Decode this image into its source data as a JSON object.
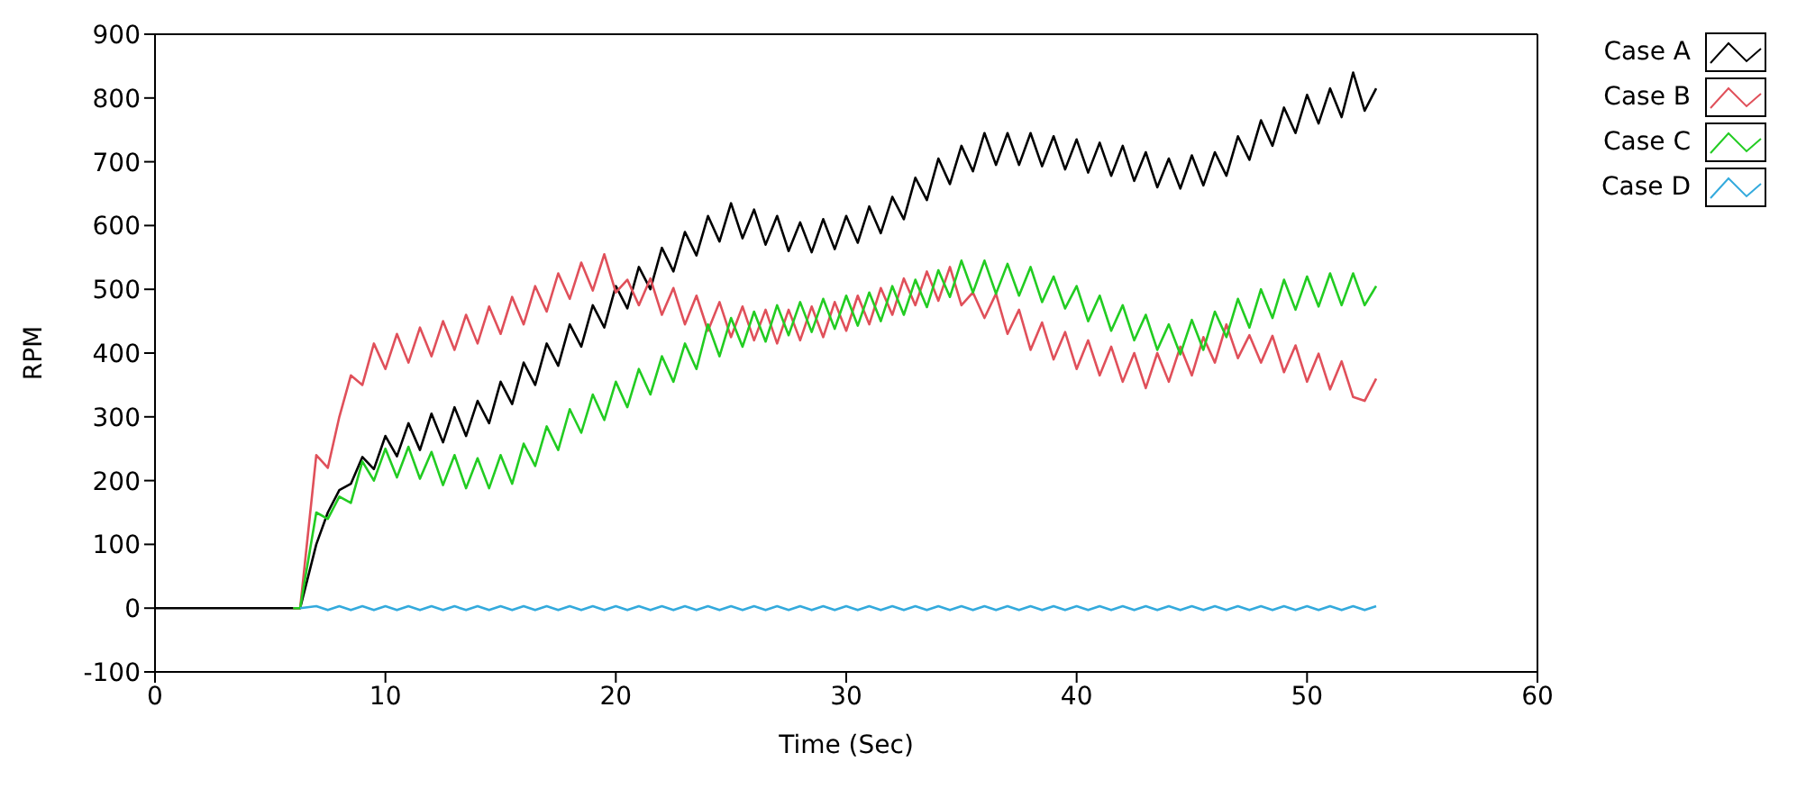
{
  "chart_data": {
    "type": "line",
    "xlabel": "Time (Sec)",
    "ylabel": "RPM",
    "xlim": [
      0,
      60
    ],
    "xticks": [
      0,
      10,
      20,
      30,
      40,
      50,
      60
    ],
    "ylim": [
      -100,
      900
    ],
    "yticks": [
      -100,
      0,
      100,
      200,
      300,
      400,
      500,
      600,
      700,
      800,
      900
    ],
    "grid": false,
    "legend": "top right",
    "marker": "none",
    "x": [
      0,
      2,
      4,
      6,
      6.3,
      7,
      7.5,
      8,
      8.5,
      9,
      9.5,
      10,
      10.5,
      11,
      11.5,
      12,
      12.5,
      13,
      13.5,
      14,
      14.5,
      15,
      15.5,
      16,
      16.5,
      17,
      17.5,
      18,
      18.5,
      19,
      19.5,
      20,
      20.5,
      21,
      21.5,
      22,
      22.5,
      23,
      23.5,
      24,
      24.5,
      25,
      25.5,
      26,
      26.5,
      27,
      27.5,
      28,
      28.5,
      29,
      29.5,
      30,
      30.5,
      31,
      31.5,
      32,
      32.5,
      33,
      33.5,
      34,
      34.5,
      35,
      35.5,
      36,
      36.5,
      37,
      37.5,
      38,
      38.5,
      39,
      39.5,
      40,
      40.5,
      41,
      41.5,
      42,
      42.5,
      43,
      43.5,
      44,
      44.5,
      45,
      45.5,
      46,
      46.5,
      47,
      47.5,
      48,
      48.5,
      49,
      49.5,
      50,
      50.5,
      51,
      51.5,
      52,
      52.5,
      53
    ],
    "series": [
      {
        "name": "Case A",
        "color": "#000000",
        "values": [
          0,
          0,
          0,
          0,
          0,
          100,
          150,
          185,
          195,
          237,
          218,
          270,
          238,
          290,
          248,
          305,
          260,
          315,
          270,
          325,
          290,
          355,
          320,
          385,
          350,
          415,
          380,
          445,
          410,
          475,
          440,
          505,
          470,
          535,
          500,
          565,
          528,
          590,
          553,
          615,
          575,
          635,
          580,
          625,
          570,
          615,
          560,
          605,
          558,
          610,
          563,
          615,
          573,
          630,
          588,
          645,
          610,
          675,
          640,
          705,
          665,
          725,
          685,
          745,
          695,
          745,
          695,
          745,
          693,
          740,
          688,
          735,
          683,
          730,
          678,
          725,
          670,
          715,
          660,
          705,
          658,
          710,
          663,
          715,
          678,
          740,
          703,
          765,
          725,
          785,
          745,
          805,
          760,
          815,
          770,
          840,
          780,
          815
        ]
      },
      {
        "name": "Case B",
        "color": "#e0505a",
        "values": [
          null,
          null,
          null,
          0,
          0,
          240,
          220,
          300,
          365,
          350,
          415,
          375,
          430,
          385,
          440,
          395,
          450,
          405,
          460,
          415,
          473,
          430,
          488,
          445,
          505,
          465,
          525,
          485,
          542,
          498,
          555,
          495,
          515,
          475,
          517,
          460,
          502,
          445,
          490,
          435,
          480,
          425,
          473,
          420,
          468,
          415,
          468,
          420,
          473,
          425,
          480,
          435,
          490,
          445,
          502,
          460,
          517,
          475,
          528,
          482,
          535,
          475,
          495,
          455,
          493,
          430,
          468,
          405,
          448,
          390,
          433,
          375,
          420,
          365,
          410,
          355,
          400,
          345,
          400,
          355,
          410,
          365,
          425,
          385,
          445,
          392,
          428,
          385,
          427,
          370,
          412,
          355,
          399,
          343,
          387,
          331,
          325,
          360
        ]
      },
      {
        "name": "Case C",
        "color": "#22cc22",
        "values": [
          null,
          null,
          null,
          0,
          0,
          150,
          140,
          175,
          165,
          230,
          200,
          250,
          205,
          253,
          203,
          245,
          193,
          240,
          188,
          235,
          188,
          240,
          195,
          258,
          223,
          285,
          248,
          312,
          275,
          335,
          295,
          355,
          315,
          375,
          335,
          395,
          355,
          415,
          375,
          445,
          395,
          455,
          410,
          465,
          418,
          475,
          428,
          480,
          433,
          485,
          438,
          490,
          443,
          495,
          450,
          505,
          460,
          515,
          472,
          530,
          488,
          545,
          495,
          545,
          493,
          540,
          490,
          535,
          480,
          520,
          470,
          505,
          450,
          490,
          435,
          475,
          420,
          460,
          405,
          445,
          398,
          452,
          405,
          465,
          425,
          485,
          440,
          500,
          455,
          515,
          468,
          520,
          473,
          525,
          475,
          525,
          475,
          505
        ]
      },
      {
        "name": "Case D",
        "color": "#33aadd",
        "values": [
          null,
          null,
          null,
          null,
          0,
          3,
          -3,
          3,
          -3,
          3,
          -3,
          3,
          -3,
          3,
          -3,
          3,
          -3,
          3,
          -3,
          3,
          -3,
          3,
          -3,
          3,
          -3,
          3,
          -3,
          3,
          -3,
          3,
          -3,
          3,
          -3,
          3,
          -3,
          3,
          -3,
          3,
          -3,
          3,
          -3,
          3,
          -3,
          3,
          -3,
          3,
          -3,
          3,
          -3,
          3,
          -3,
          3,
          -3,
          3,
          -3,
          3,
          -3,
          3,
          -3,
          3,
          -3,
          3,
          -3,
          3,
          -3,
          3,
          -3,
          3,
          -3,
          3,
          -3,
          3,
          -3,
          3,
          -3,
          3,
          -3,
          3,
          -3,
          3,
          -3,
          3,
          -3,
          3,
          -3,
          3,
          -3,
          3,
          -3,
          3,
          -3,
          3,
          -3,
          3,
          -3,
          3,
          -3,
          3
        ]
      }
    ]
  }
}
